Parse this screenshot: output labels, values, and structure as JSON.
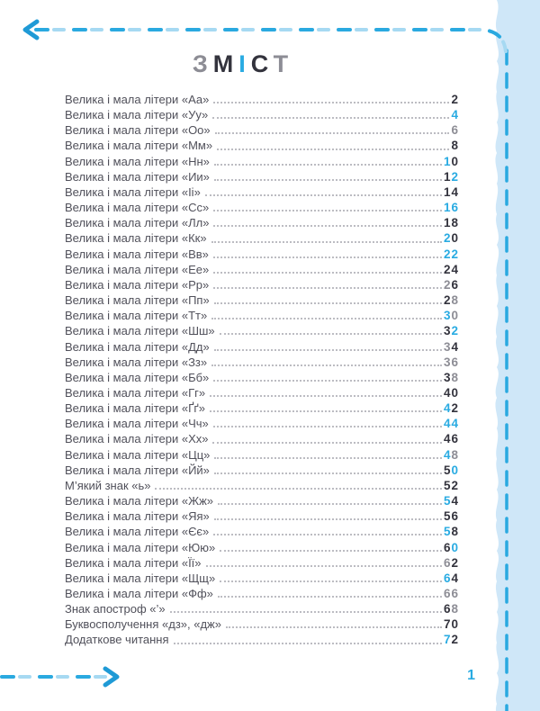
{
  "page": {
    "language": "uk",
    "title_letters": [
      {
        "ch": "З",
        "color": "gray"
      },
      {
        "ch": "М",
        "color": "dark"
      },
      {
        "ch": "І",
        "color": "cyan"
      },
      {
        "ch": "С",
        "color": "dark"
      },
      {
        "ch": "Т",
        "color": "gray"
      }
    ],
    "footer_page_number": "1"
  },
  "colors": {
    "cyan": "#29abe2",
    "dark": "#33333d",
    "gray": "#8d8d95",
    "text": "#50505a",
    "dots": "#bcbcc2",
    "band": "#cfe7f8",
    "dash_dark": "#2aa9e0",
    "dash_light": "#a6d9f2"
  },
  "icons": {
    "top_arrow": "dashed-arrow-left-icon",
    "bottom_arrow": "dashed-arrow-right-icon",
    "right_edge": "torn-paper-edge"
  },
  "toc": {
    "entries": [
      {
        "label": "Велика і мала літери «Аа»",
        "page": "2",
        "digit_colors": [
          "dark"
        ]
      },
      {
        "label": "Велика і мала літери «Уу»",
        "page": "4",
        "digit_colors": [
          "cyan"
        ]
      },
      {
        "label": "Велика і мала літери «Оо»",
        "page": "6",
        "digit_colors": [
          "gray"
        ]
      },
      {
        "label": "Велика і мала літери «Мм»",
        "page": "8",
        "digit_colors": [
          "dark"
        ]
      },
      {
        "label": "Велика і мала літери «Нн»",
        "page": "10",
        "digit_colors": [
          "cyan",
          "dark"
        ]
      },
      {
        "label": "Велика і мала літери «Ии»",
        "page": "12",
        "digit_colors": [
          "dark",
          "cyan"
        ]
      },
      {
        "label": "Велика і мала літери «Іі»",
        "page": "14",
        "digit_colors": [
          "dark",
          "dark"
        ]
      },
      {
        "label": "Велика і мала літери «Сс»",
        "page": "16",
        "digit_colors": [
          "cyan",
          "cyan"
        ]
      },
      {
        "label": "Велика і мала літери «Лл»",
        "page": "18",
        "digit_colors": [
          "dark",
          "dark"
        ]
      },
      {
        "label": "Велика і мала літери «Кк»",
        "page": "20",
        "digit_colors": [
          "cyan",
          "dark"
        ]
      },
      {
        "label": "Велика і мала літери «Вв»",
        "page": "22",
        "digit_colors": [
          "cyan",
          "cyan"
        ]
      },
      {
        "label": "Велика і мала літери «Ее»",
        "page": "24",
        "digit_colors": [
          "dark",
          "dark"
        ]
      },
      {
        "label": "Велика і мала літери «Рр»",
        "page": "26",
        "digit_colors": [
          "gray",
          "dark"
        ]
      },
      {
        "label": "Велика і мала літери «Пп»",
        "page": "28",
        "digit_colors": [
          "dark",
          "gray"
        ]
      },
      {
        "label": "Велика і мала літери «Тт»",
        "page": "30",
        "digit_colors": [
          "cyan",
          "gray"
        ]
      },
      {
        "label": "Велика і мала літери «Шш»",
        "page": "32",
        "digit_colors": [
          "dark",
          "cyan"
        ]
      },
      {
        "label": "Велика і мала літери «Дд»",
        "page": "34",
        "digit_colors": [
          "gray",
          "dark"
        ]
      },
      {
        "label": "Велика і мала літери «Зз»",
        "page": "36",
        "digit_colors": [
          "gray",
          "gray"
        ]
      },
      {
        "label": "Велика і мала літери «Бб»",
        "page": "38",
        "digit_colors": [
          "dark",
          "gray"
        ]
      },
      {
        "label": "Велика і мала літери «Гг»",
        "page": "40",
        "digit_colors": [
          "dark",
          "dark"
        ]
      },
      {
        "label": "Велика і мала літери «Ґґ»",
        "page": "42",
        "digit_colors": [
          "cyan",
          "dark"
        ]
      },
      {
        "label": "Велика і мала літери «Чч»",
        "page": "44",
        "digit_colors": [
          "cyan",
          "cyan"
        ]
      },
      {
        "label": "Велика і мала літери «Хх»",
        "page": "46",
        "digit_colors": [
          "dark",
          "dark"
        ]
      },
      {
        "label": "Велика і мала літери «Цц»",
        "page": "48",
        "digit_colors": [
          "cyan",
          "gray"
        ]
      },
      {
        "label": "Велика і мала літери «Йй»",
        "page": "50",
        "digit_colors": [
          "dark",
          "cyan"
        ]
      },
      {
        "label": "М’який знак «ь»",
        "page": "52",
        "digit_colors": [
          "dark",
          "dark"
        ]
      },
      {
        "label": "Велика і мала літери «Жж»",
        "page": "54",
        "digit_colors": [
          "cyan",
          "dark"
        ]
      },
      {
        "label": "Велика і мала літери «Яя»",
        "page": "56",
        "digit_colors": [
          "dark",
          "dark"
        ]
      },
      {
        "label": "Велика і мала літери «Єє»",
        "page": "58",
        "digit_colors": [
          "cyan",
          "dark"
        ]
      },
      {
        "label": "Велика і мала літери «Юю»",
        "page": "60",
        "digit_colors": [
          "dark",
          "cyan"
        ]
      },
      {
        "label": "Велика і мала літери «Її»",
        "page": "62",
        "digit_colors": [
          "gray",
          "dark"
        ]
      },
      {
        "label": "Велика і мала літери «Щщ»",
        "page": "64",
        "digit_colors": [
          "cyan",
          "dark"
        ]
      },
      {
        "label": "Велика і мала літери «Фф»",
        "page": "66",
        "digit_colors": [
          "gray",
          "gray"
        ]
      },
      {
        "label": "Знак апостроф «’»",
        "page": "68",
        "digit_colors": [
          "dark",
          "gray"
        ]
      },
      {
        "label": "Буквосполучення «дз», «дж»",
        "page": "70",
        "digit_colors": [
          "dark",
          "dark"
        ]
      },
      {
        "label": "Додаткове читання",
        "page": "72",
        "digit_colors": [
          "cyan",
          "dark"
        ]
      }
    ]
  }
}
